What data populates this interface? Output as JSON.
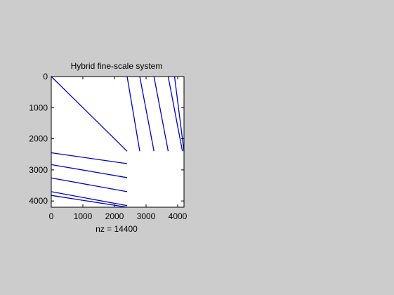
{
  "window": {
    "background": "#cccccc"
  },
  "chart_data": {
    "type": "spy",
    "title": "Hybrid fine-scale system",
    "xlabel": "nz = 14400",
    "ylabel": "",
    "nz": 14400,
    "xlim": [
      0,
      4200
    ],
    "ylim": [
      4200,
      0
    ],
    "y_reversed": true,
    "grid": false,
    "legend": "none",
    "x_ticks": [
      0,
      1000,
      2000,
      3000,
      4000
    ],
    "y_ticks": [
      0,
      1000,
      2000,
      3000,
      4000
    ],
    "marker_color": "#0000cc",
    "axes_background": "#ffffff",
    "nonzero_bands": [
      {
        "name": "main diagonal",
        "from": [
          0,
          0
        ],
        "to": [
          2400,
          2400
        ]
      },
      {
        "name": "upper-right band 1",
        "from": [
          2400,
          0
        ],
        "to": [
          2800,
          2400
        ]
      },
      {
        "name": "upper-right band 2",
        "from": [
          2800,
          0
        ],
        "to": [
          3250,
          2400
        ]
      },
      {
        "name": "upper-right band 3",
        "from": [
          3250,
          0
        ],
        "to": [
          3700,
          2400
        ]
      },
      {
        "name": "upper-right band 4",
        "from": [
          3700,
          0
        ],
        "to": [
          4150,
          2400
        ]
      },
      {
        "name": "upper-right band 5",
        "from": [
          3900,
          0
        ],
        "to": [
          4200,
          2400
        ]
      },
      {
        "name": "lower-left band 1",
        "from": [
          0,
          2450
        ],
        "to": [
          2400,
          2800
        ]
      },
      {
        "name": "lower-left band 2",
        "from": [
          0,
          2830
        ],
        "to": [
          2400,
          3250
        ]
      },
      {
        "name": "lower-left band 3",
        "from": [
          0,
          3260
        ],
        "to": [
          2400,
          3700
        ]
      },
      {
        "name": "lower-left band 4",
        "from": [
          0,
          3700
        ],
        "to": [
          2400,
          4150
        ]
      },
      {
        "name": "lower-left band 5",
        "from": [
          0,
          3820
        ],
        "to": [
          2400,
          4200
        ]
      }
    ]
  }
}
